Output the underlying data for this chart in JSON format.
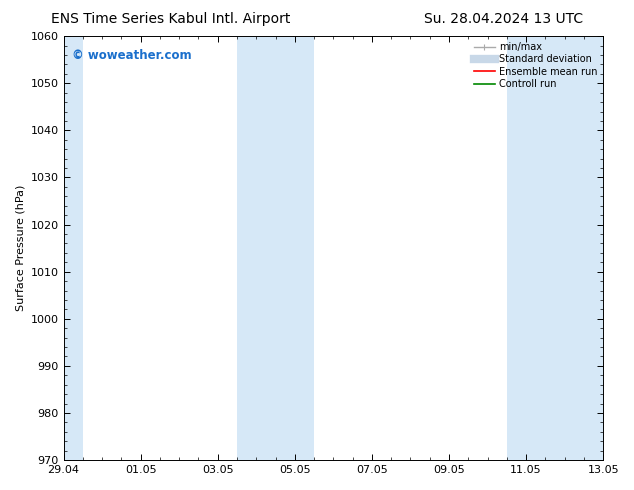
{
  "title_left": "ENS Time Series Kabul Intl. Airport",
  "title_right": "Su. 28.04.2024 13 UTC",
  "ylabel": "Surface Pressure (hPa)",
  "bg_color": "#ffffff",
  "plot_bg_color": "#ffffff",
  "ylim": [
    970,
    1060
  ],
  "yticks": [
    970,
    980,
    990,
    1000,
    1010,
    1020,
    1030,
    1040,
    1050,
    1060
  ],
  "xtick_labels": [
    "29.04",
    "01.05",
    "03.05",
    "05.05",
    "07.05",
    "09.05",
    "11.05",
    "13.05"
  ],
  "shaded_color": "#d6e8f7",
  "watermark_text": "© woweather.com",
  "watermark_color": "#1a6fcc",
  "tick_fontsize": 8,
  "label_fontsize": 8,
  "title_fontsize": 10
}
